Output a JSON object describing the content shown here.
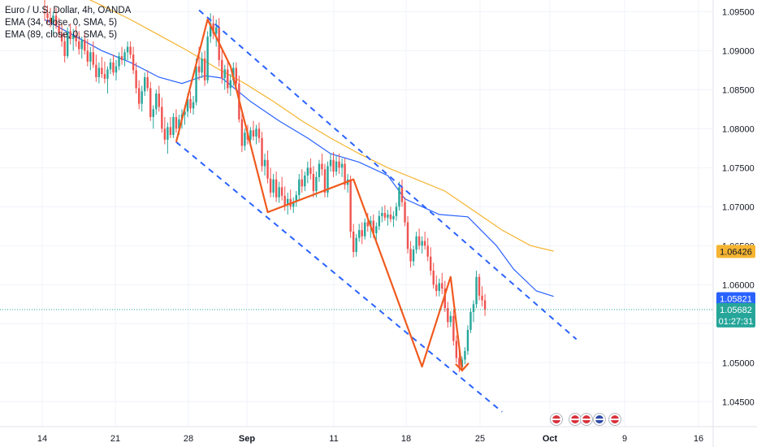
{
  "header": {
    "title": "Euro / U.S. Dollar, 4h, OANDA",
    "indicators": [
      "EMA (34, close, 0, SMA, 5)",
      "EMA (89, close, 0, SMA, 5)"
    ]
  },
  "price_labels": {
    "ema89": "1.06426",
    "ema34": "1.05821",
    "last": "1.05682",
    "countdown": "01:27:31"
  },
  "colors": {
    "ema89": "#f5b431",
    "ema34": "#2962ff",
    "up": "#26a69a",
    "down": "#ef5350",
    "pattern": "#f05a1e",
    "channel": "#2962ff",
    "last": "#26a69a"
  },
  "chart_data": {
    "type": "candlestick",
    "symbol": "Euro / U.S. Dollar",
    "timeframe": "4h",
    "source": "OANDA",
    "x_tick_labels": [
      {
        "label": "14",
        "bold": false
      },
      {
        "label": "21",
        "bold": false
      },
      {
        "label": "28",
        "bold": false
      },
      {
        "label": "Sep",
        "bold": true
      },
      {
        "label": "11",
        "bold": false
      },
      {
        "label": "18",
        "bold": false
      },
      {
        "label": "25",
        "bold": false
      },
      {
        "label": "Oct",
        "bold": true
      },
      {
        "label": "9",
        "bold": false
      },
      {
        "label": "16",
        "bold": false
      }
    ],
    "y_ticks": [
      "1.09500",
      "1.09000",
      "1.08500",
      "1.08000",
      "1.07500",
      "1.07000",
      "1.06500",
      "1.06000",
      "1.05500",
      "1.05000",
      "1.04500"
    ],
    "ylim": [
      1.0418,
      1.0965
    ],
    "series": [
      {
        "name": "EMA (34, close, 0, SMA, 5)",
        "color": "#2962ff",
        "points": [
          [
            0,
            1.094
          ],
          [
            10,
            1.092
          ],
          [
            20,
            1.09
          ],
          [
            30,
            1.0885
          ],
          [
            40,
            1.0866
          ],
          [
            48,
            1.0858
          ],
          [
            56,
            1.0868
          ],
          [
            62,
            1.0865
          ],
          [
            72,
            1.0835
          ],
          [
            82,
            1.081
          ],
          [
            92,
            1.0788
          ],
          [
            100,
            1.0768
          ],
          [
            110,
            1.0757
          ],
          [
            120,
            1.074
          ],
          [
            126,
            1.071
          ],
          [
            132,
            1.07
          ],
          [
            138,
            1.069
          ],
          [
            148,
            1.0687
          ],
          [
            158,
            1.065
          ],
          [
            164,
            1.062
          ],
          [
            172,
            1.0592
          ],
          [
            178,
            1.0585
          ]
        ]
      },
      {
        "name": "EMA (89, close, 0, SMA, 5)",
        "color": "#f5b431",
        "points": [
          [
            0,
            1.099
          ],
          [
            10,
            1.0975
          ],
          [
            20,
            1.0958
          ],
          [
            30,
            1.094
          ],
          [
            40,
            1.092
          ],
          [
            50,
            1.09
          ],
          [
            60,
            1.0878
          ],
          [
            70,
            1.0858
          ],
          [
            80,
            1.0835
          ],
          [
            90,
            1.081
          ],
          [
            100,
            1.0788
          ],
          [
            110,
            1.0768
          ],
          [
            120,
            1.075
          ],
          [
            130,
            1.0735
          ],
          [
            140,
            1.072
          ],
          [
            150,
            1.0695
          ],
          [
            160,
            1.067
          ],
          [
            170,
            1.065
          ],
          [
            178,
            1.0643
          ]
        ]
      }
    ],
    "candles_ohlc": [
      [
        1.095,
        1.0965,
        1.0938,
        1.0948
      ],
      [
        1.0948,
        1.0958,
        1.0935,
        1.0942
      ],
      [
        1.0942,
        1.0955,
        1.093,
        1.0936
      ],
      [
        1.0936,
        1.095,
        1.0922,
        1.0945
      ],
      [
        1.0945,
        1.0955,
        1.0928,
        1.0932
      ],
      [
        1.0932,
        1.0942,
        1.0918,
        1.0922
      ],
      [
        1.0922,
        1.0935,
        1.0905,
        1.0912
      ],
      [
        1.0912,
        1.0922,
        1.0885,
        1.0893
      ],
      [
        1.0893,
        1.093,
        1.089,
        1.0925
      ],
      [
        1.0925,
        1.0935,
        1.0908,
        1.0915
      ],
      [
        1.0915,
        1.0928,
        1.09,
        1.092
      ],
      [
        1.092,
        1.0932,
        1.0905,
        1.0912
      ],
      [
        1.0912,
        1.0925,
        1.0895,
        1.0902
      ],
      [
        1.0902,
        1.0918,
        1.089,
        1.0914
      ],
      [
        1.0914,
        1.0922,
        1.0895,
        1.09
      ],
      [
        1.09,
        1.0915,
        1.088,
        1.0886
      ],
      [
        1.0886,
        1.0905,
        1.0875,
        1.0898
      ],
      [
        1.0898,
        1.0912,
        1.0878,
        1.0882
      ],
      [
        1.0882,
        1.0895,
        1.086,
        1.0866
      ],
      [
        1.0866,
        1.0885,
        1.0858,
        1.0878
      ],
      [
        1.0878,
        1.0892,
        1.0865,
        1.087
      ],
      [
        1.087,
        1.0886,
        1.0858,
        1.0864
      ],
      [
        1.0864,
        1.088,
        1.0845,
        1.0876
      ],
      [
        1.0876,
        1.089,
        1.087,
        1.0885
      ],
      [
        1.0885,
        1.0895,
        1.0868,
        1.0872
      ],
      [
        1.0872,
        1.0888,
        1.0862,
        1.088
      ],
      [
        1.088,
        1.0898,
        1.0875,
        1.0893
      ],
      [
        1.0893,
        1.0905,
        1.0882,
        1.0888
      ],
      [
        1.0888,
        1.0902,
        1.088,
        1.0898
      ],
      [
        1.0898,
        1.0912,
        1.0888,
        1.0905
      ],
      [
        1.0905,
        1.0912,
        1.089,
        1.0895
      ],
      [
        1.0895,
        1.0905,
        1.087,
        1.0875
      ],
      [
        1.0875,
        1.0885,
        1.0845,
        1.0852
      ],
      [
        1.0852,
        1.0862,
        1.0825,
        1.0832
      ],
      [
        1.0832,
        1.0855,
        1.0822,
        1.0848
      ],
      [
        1.0848,
        1.0872,
        1.0842,
        1.0866
      ],
      [
        1.0866,
        1.0875,
        1.0848,
        1.0852
      ],
      [
        1.0852,
        1.086,
        1.081,
        1.0815
      ],
      [
        1.0815,
        1.083,
        1.08,
        1.0825
      ],
      [
        1.0825,
        1.085,
        1.0818,
        1.0845
      ],
      [
        1.0845,
        1.0855,
        1.0822,
        1.0828
      ],
      [
        1.0828,
        1.084,
        1.0795,
        1.08
      ],
      [
        1.08,
        1.0815,
        1.078,
        1.0786
      ],
      [
        1.0786,
        1.0808,
        1.0768,
        1.0802
      ],
      [
        1.0802,
        1.0815,
        1.0788,
        1.0792
      ],
      [
        1.0792,
        1.082,
        1.0788,
        1.0815
      ],
      [
        1.0815,
        1.0825,
        1.0795,
        1.08
      ],
      [
        1.08,
        1.0818,
        1.0792,
        1.0812
      ],
      [
        1.0812,
        1.0825,
        1.08,
        1.0818
      ],
      [
        1.0818,
        1.083,
        1.0805,
        1.0822
      ],
      [
        1.0822,
        1.0845,
        1.0815,
        1.0838
      ],
      [
        1.0838,
        1.0848,
        1.082,
        1.0826
      ],
      [
        1.0826,
        1.0842,
        1.0818,
        1.0834
      ],
      [
        1.0834,
        1.089,
        1.083,
        1.088
      ],
      [
        1.088,
        1.0905,
        1.0862,
        1.0872
      ],
      [
        1.0872,
        1.0898,
        1.0865,
        1.089
      ],
      [
        1.089,
        1.09,
        1.0855,
        1.0862
      ],
      [
        1.0862,
        1.0925,
        1.0858,
        1.0918
      ],
      [
        1.0918,
        1.0948,
        1.091,
        1.0935
      ],
      [
        1.0935,
        1.0945,
        1.0915,
        1.0922
      ],
      [
        1.0922,
        1.094,
        1.0905,
        1.093
      ],
      [
        1.093,
        1.0942,
        1.088,
        1.0888
      ],
      [
        1.0888,
        1.09,
        1.0858,
        1.0865
      ],
      [
        1.0865,
        1.0882,
        1.085,
        1.0876
      ],
      [
        1.0876,
        1.0888,
        1.0845,
        1.0852
      ],
      [
        1.0852,
        1.087,
        1.0842,
        1.0862
      ],
      [
        1.0862,
        1.0885,
        1.0855,
        1.0878
      ],
      [
        1.0878,
        1.0885,
        1.0852,
        1.0858
      ],
      [
        1.0858,
        1.0868,
        1.0808,
        1.0812
      ],
      [
        1.0812,
        1.082,
        1.077,
        1.0778
      ],
      [
        1.0778,
        1.08,
        1.0772,
        1.0795
      ],
      [
        1.0795,
        1.0805,
        1.078,
        1.0786
      ],
      [
        1.0786,
        1.0802,
        1.0778,
        1.0798
      ],
      [
        1.0798,
        1.081,
        1.0785,
        1.079
      ],
      [
        1.079,
        1.0805,
        1.078,
        1.08
      ],
      [
        1.08,
        1.0808,
        1.0782,
        1.0788
      ],
      [
        1.0788,
        1.0796,
        1.0745,
        1.0752
      ],
      [
        1.0752,
        1.0768,
        1.074,
        1.076
      ],
      [
        1.076,
        1.0772,
        1.073,
        1.0736
      ],
      [
        1.0736,
        1.075,
        1.0712,
        1.0718
      ],
      [
        1.0718,
        1.0742,
        1.0712,
        1.0735
      ],
      [
        1.0735,
        1.0745,
        1.0706,
        1.0712
      ],
      [
        1.0712,
        1.0732,
        1.0705,
        1.0725
      ],
      [
        1.0725,
        1.0738,
        1.0708,
        1.0714
      ],
      [
        1.0714,
        1.0726,
        1.0695,
        1.0702
      ],
      [
        1.0702,
        1.0718,
        1.069,
        1.071
      ],
      [
        1.071,
        1.0722,
        1.0696,
        1.07
      ],
      [
        1.07,
        1.0712,
        1.0692,
        1.0706
      ],
      [
        1.0706,
        1.072,
        1.07,
        1.0715
      ],
      [
        1.0715,
        1.0742,
        1.0708,
        1.0735
      ],
      [
        1.0735,
        1.0748,
        1.0718,
        1.0726
      ],
      [
        1.0726,
        1.0745,
        1.072,
        1.074
      ],
      [
        1.074,
        1.0758,
        1.073,
        1.075
      ],
      [
        1.075,
        1.0762,
        1.0735,
        1.0742
      ],
      [
        1.0742,
        1.0752,
        1.0712,
        1.072
      ],
      [
        1.072,
        1.0745,
        1.0712,
        1.0738
      ],
      [
        1.0738,
        1.076,
        1.0732,
        1.0755
      ],
      [
        1.0755,
        1.0768,
        1.074,
        1.0748
      ],
      [
        1.0748,
        1.0755,
        1.0712,
        1.0718
      ],
      [
        1.0718,
        1.0758,
        1.0712,
        1.0752
      ],
      [
        1.0752,
        1.0768,
        1.0745,
        1.076
      ],
      [
        1.076,
        1.077,
        1.0738,
        1.0745
      ],
      [
        1.0745,
        1.0765,
        1.074,
        1.0758
      ],
      [
        1.0758,
        1.0768,
        1.0742,
        1.075
      ],
      [
        1.075,
        1.0762,
        1.0738,
        1.0755
      ],
      [
        1.0755,
        1.0762,
        1.0722,
        1.0728
      ],
      [
        1.0728,
        1.0742,
        1.0718,
        1.0735
      ],
      [
        1.0735,
        1.074,
        1.066,
        1.0668
      ],
      [
        1.0668,
        1.0678,
        1.0635,
        1.0642
      ],
      [
        1.0642,
        1.0665,
        1.0636,
        1.066
      ],
      [
        1.066,
        1.0678,
        1.0655,
        1.067
      ],
      [
        1.067,
        1.068,
        1.0652,
        1.0662
      ],
      [
        1.0662,
        1.0685,
        1.0658,
        1.068
      ],
      [
        1.068,
        1.0692,
        1.0668,
        1.0675
      ],
      [
        1.0675,
        1.0688,
        1.066,
        1.0682
      ],
      [
        1.0682,
        1.069,
        1.066,
        1.0666
      ],
      [
        1.0666,
        1.068,
        1.0652,
        1.0675
      ],
      [
        1.0675,
        1.0695,
        1.067,
        1.0688
      ],
      [
        1.0688,
        1.07,
        1.068,
        1.0692
      ],
      [
        1.0692,
        1.0702,
        1.0682,
        1.0686
      ],
      [
        1.0686,
        1.0696,
        1.0676,
        1.069
      ],
      [
        1.069,
        1.07,
        1.068,
        1.0684
      ],
      [
        1.0684,
        1.0694,
        1.0674,
        1.0688
      ],
      [
        1.0688,
        1.0705,
        1.0682,
        1.07
      ],
      [
        1.07,
        1.0732,
        1.0695,
        1.0725
      ],
      [
        1.0725,
        1.0735,
        1.07,
        1.0706
      ],
      [
        1.0706,
        1.0712,
        1.0675,
        1.068
      ],
      [
        1.068,
        1.0688,
        1.064,
        1.0646
      ],
      [
        1.0646,
        1.0656,
        1.0622,
        1.063
      ],
      [
        1.063,
        1.065,
        1.0624,
        1.0645
      ],
      [
        1.0645,
        1.0668,
        1.064,
        1.0662
      ],
      [
        1.0662,
        1.0672,
        1.0645,
        1.065
      ],
      [
        1.065,
        1.0662,
        1.064,
        1.0656
      ],
      [
        1.0656,
        1.0668,
        1.0645,
        1.065
      ],
      [
        1.065,
        1.066,
        1.063,
        1.0636
      ],
      [
        1.0636,
        1.0648,
        1.0612,
        1.0618
      ],
      [
        1.0618,
        1.0628,
        1.0595,
        1.06
      ],
      [
        1.06,
        1.0612,
        1.0585,
        1.0592
      ],
      [
        1.0592,
        1.0608,
        1.0585,
        1.0602
      ],
      [
        1.0602,
        1.0615,
        1.0588,
        1.0595
      ],
      [
        1.0595,
        1.0605,
        1.0565,
        1.057
      ],
      [
        1.057,
        1.0578,
        1.0545,
        1.0552
      ],
      [
        1.0552,
        1.0566,
        1.0546,
        1.056
      ],
      [
        1.056,
        1.0568,
        1.0522,
        1.0528
      ],
      [
        1.0528,
        1.0535,
        1.05,
        1.0506
      ],
      [
        1.0506,
        1.0515,
        1.0488,
        1.0494
      ],
      [
        1.0494,
        1.0508,
        1.049,
        1.0504
      ],
      [
        1.0504,
        1.052,
        1.0498,
        1.0515
      ],
      [
        1.0515,
        1.0548,
        1.051,
        1.0542
      ],
      [
        1.0542,
        1.057,
        1.0538,
        1.0565
      ],
      [
        1.0565,
        1.058,
        1.0552,
        1.0575
      ],
      [
        1.0575,
        1.0618,
        1.057,
        1.061
      ],
      [
        1.061,
        1.0614,
        1.058,
        1.0586
      ],
      [
        1.0586,
        1.0598,
        1.0572,
        1.058
      ],
      [
        1.058,
        1.0588,
        1.056,
        1.0568
      ]
    ],
    "pattern_points": [
      [
        46,
        1.0783
      ],
      [
        57,
        1.094
      ],
      [
        65,
        1.088
      ],
      [
        78,
        1.0693
      ],
      [
        108,
        1.0735
      ],
      [
        132,
        1.0495
      ],
      [
        142,
        1.061
      ],
      [
        146,
        1.049
      ]
    ],
    "channel_upper": [
      [
        54,
        1.0952
      ],
      [
        186,
        1.053
      ]
    ],
    "channel_lower": [
      [
        46,
        1.0783
      ],
      [
        160,
        1.0437
      ]
    ]
  }
}
